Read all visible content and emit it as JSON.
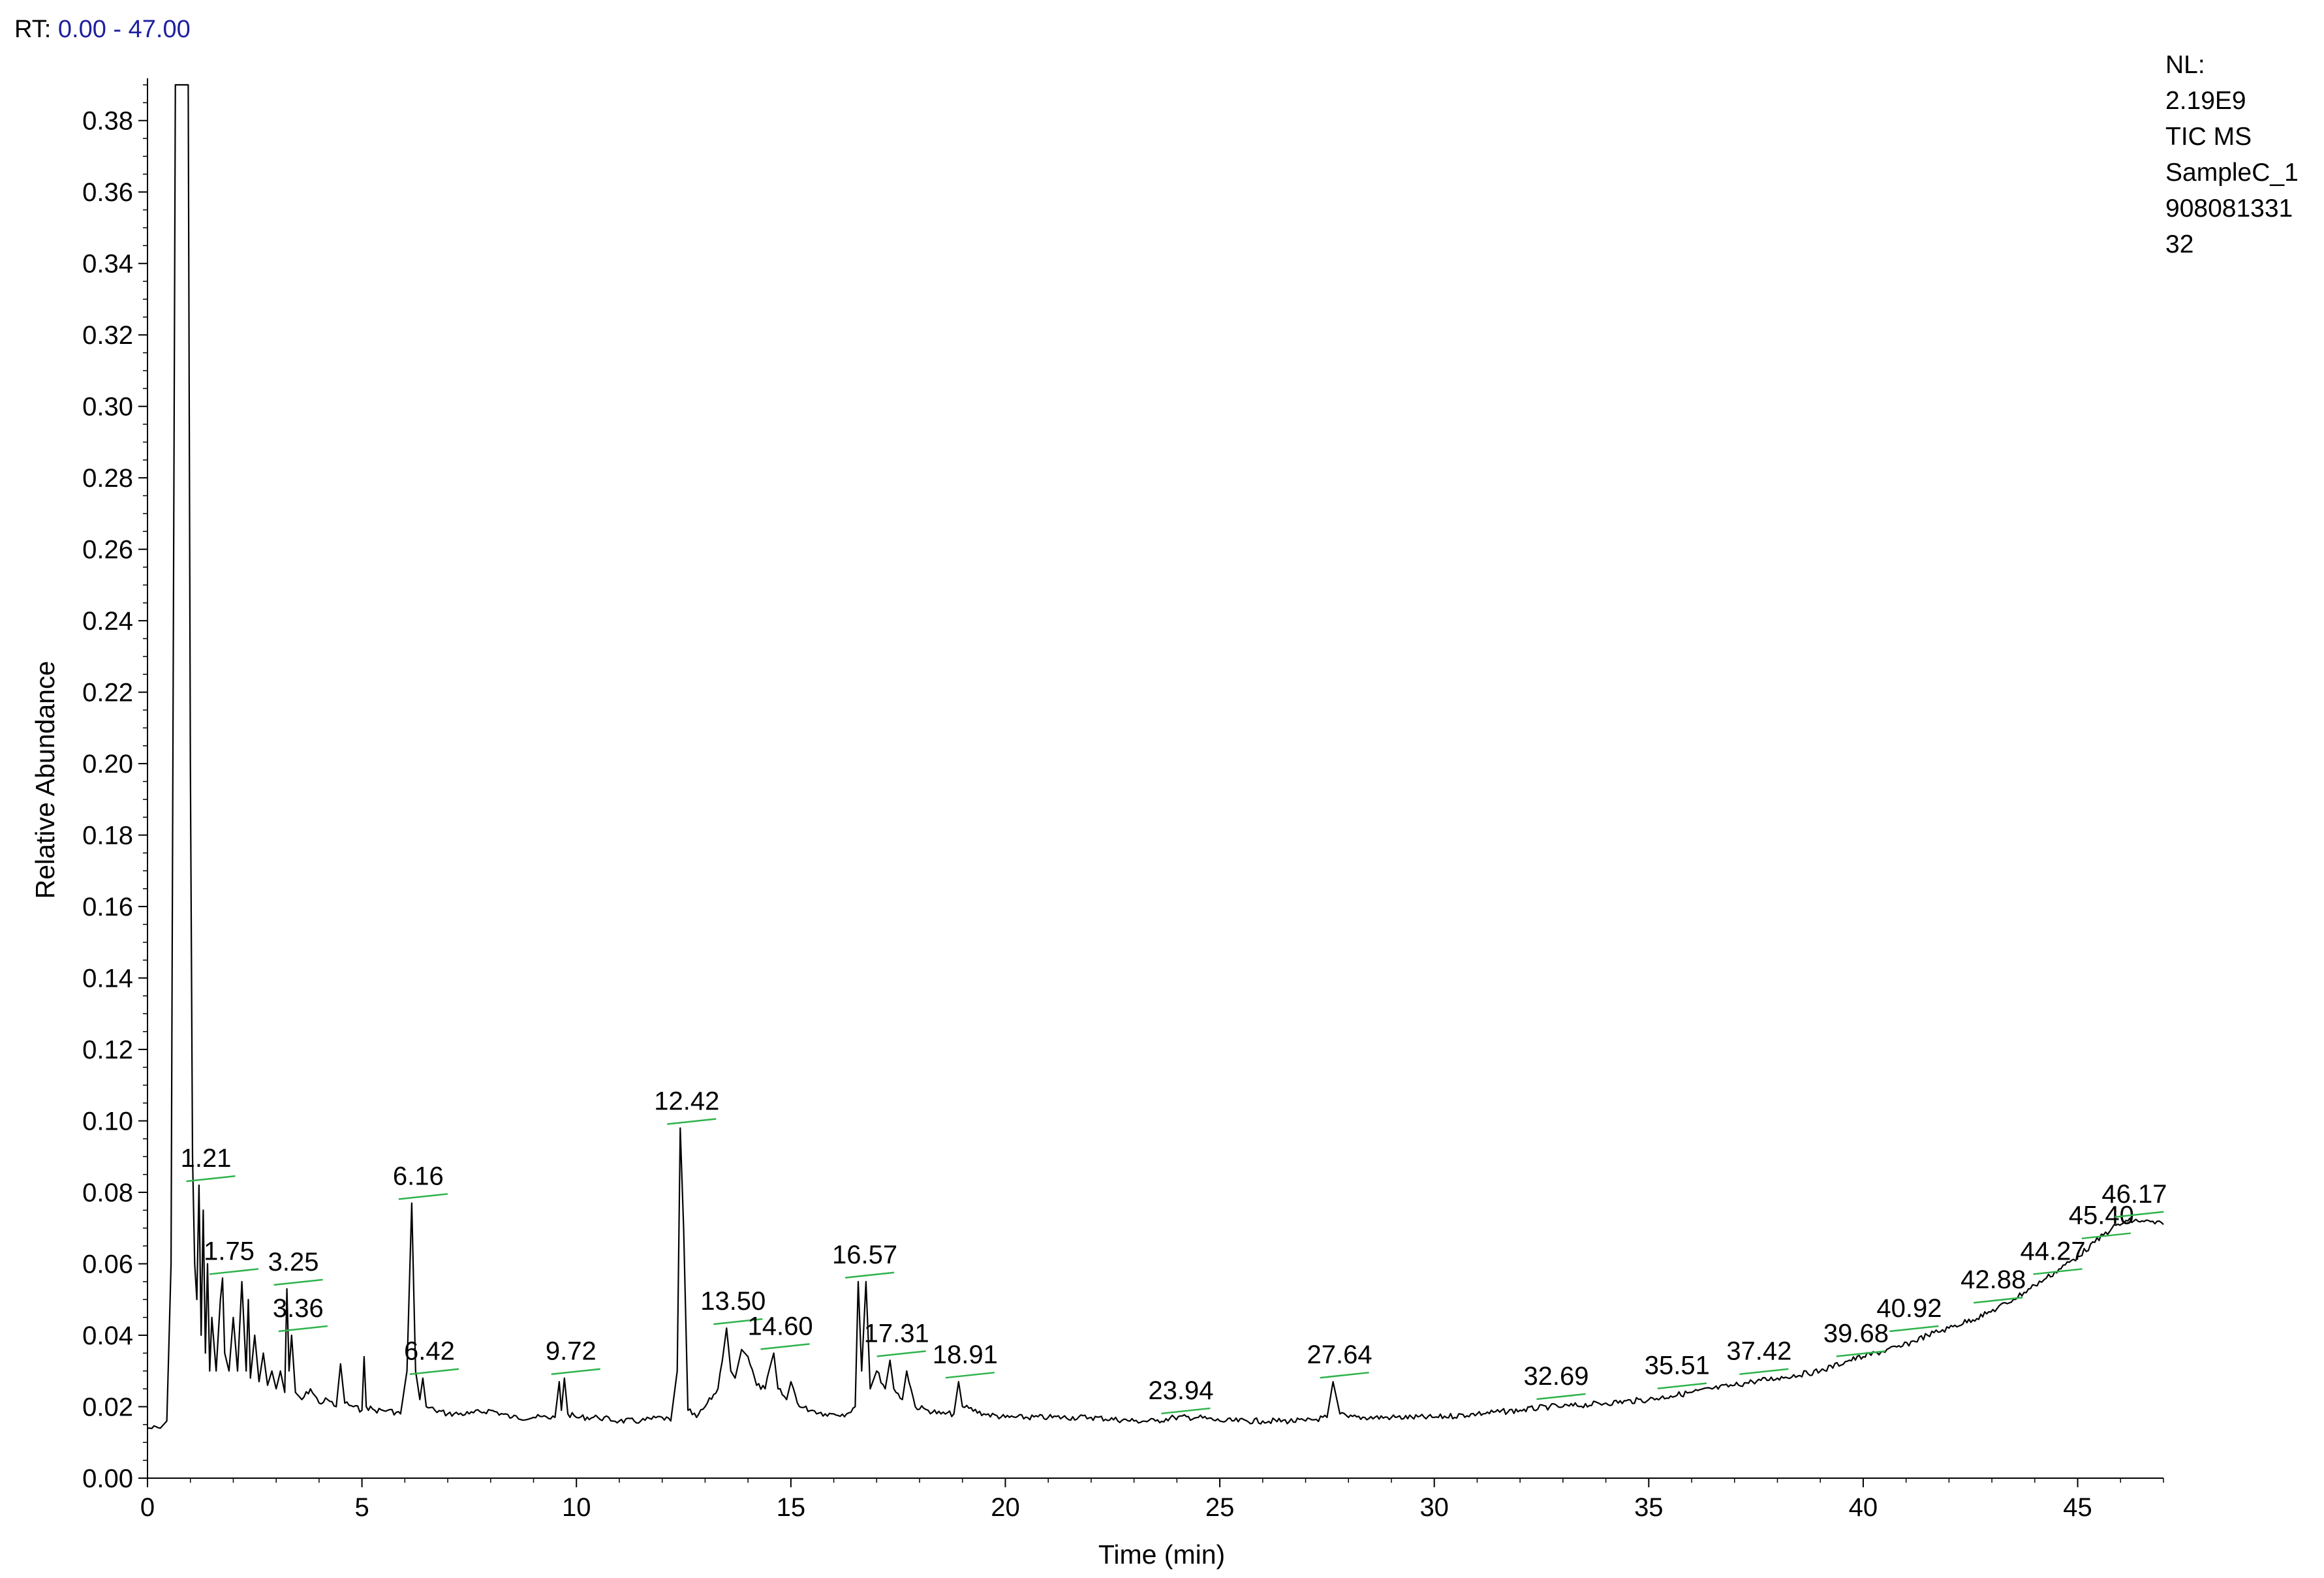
{
  "header": {
    "rt_prefix": "RT:",
    "rt_range": "0.00 - 47.00"
  },
  "info_box": {
    "lines": [
      "NL:",
      "2.19E9",
      "TIC  MS",
      "SampleC_1",
      "908081331",
      "32"
    ]
  },
  "chart_data": {
    "type": "line",
    "title": "",
    "xlabel": "Time (min)",
    "ylabel": "Relative Abundance",
    "xlim": [
      0,
      47
    ],
    "ylim": [
      0,
      0.39
    ],
    "xticks": [
      0,
      5,
      10,
      15,
      20,
      25,
      30,
      35,
      40,
      45
    ],
    "yticks": [
      "0.00",
      "0.02",
      "0.04",
      "0.06",
      "0.08",
      "0.10",
      "0.12",
      "0.14",
      "0.16",
      "0.18",
      "0.20",
      "0.22",
      "0.24",
      "0.26",
      "0.28",
      "0.30",
      "0.32",
      "0.34",
      "0.36",
      "0.38"
    ],
    "grid": false,
    "line_color": "#000000",
    "marker_color": "#2db34a",
    "series": [
      {
        "x": [
          0.0,
          0.3,
          0.45,
          0.55,
          0.65,
          0.75,
          0.8,
          0.85,
          0.9,
          0.95,
          1.0,
          1.05,
          1.1,
          1.15,
          1.2,
          1.25,
          1.3,
          1.35,
          1.4,
          1.45,
          1.5,
          1.6,
          1.7,
          1.75,
          1.8,
          1.9,
          2.0,
          2.1,
          2.2,
          2.3,
          2.35,
          2.4,
          2.5,
          2.6,
          2.7,
          2.8,
          2.9,
          3.0,
          3.1,
          3.2,
          3.25,
          3.3,
          3.36,
          3.45,
          3.6,
          3.8,
          4.0,
          4.2,
          4.4,
          4.5,
          4.6,
          4.8,
          5.0,
          5.05,
          5.1,
          5.3,
          5.6,
          5.9,
          6.05,
          6.16,
          6.25,
          6.35,
          6.42,
          6.5,
          6.7,
          7.0,
          7.5,
          8.0,
          8.5,
          9.0,
          9.5,
          9.6,
          9.65,
          9.72,
          9.8,
          10.0,
          10.5,
          11.0,
          11.5,
          12.0,
          12.2,
          12.35,
          12.42,
          12.5,
          12.6,
          12.8,
          13.0,
          13.3,
          13.5,
          13.6,
          13.7,
          13.85,
          14.0,
          14.2,
          14.4,
          14.6,
          14.7,
          14.9,
          15.0,
          15.2,
          15.5,
          15.8,
          16.0,
          16.3,
          16.5,
          16.57,
          16.65,
          16.75,
          16.85,
          17.0,
          17.2,
          17.31,
          17.4,
          17.6,
          17.7,
          17.9,
          18.2,
          18.5,
          18.8,
          18.91,
          19.0,
          19.5,
          20.0,
          21.0,
          22.0,
          23.0,
          23.5,
          23.94,
          24.5,
          25.0,
          26.0,
          27.0,
          27.5,
          27.64,
          27.8,
          28.0,
          29.0,
          30.0,
          31.0,
          32.0,
          32.69,
          33.0,
          34.0,
          35.0,
          35.51,
          36.0,
          37.0,
          37.42,
          38.0,
          39.0,
          39.68,
          40.0,
          40.92,
          41.5,
          42.0,
          42.88,
          43.5,
          44.0,
          44.27,
          45.0,
          45.4,
          45.8,
          46.17,
          46.5,
          47.0
        ],
        "y": [
          0.014,
          0.014,
          0.016,
          0.06,
          0.39,
          0.39,
          0.39,
          0.39,
          0.39,
          0.39,
          0.2,
          0.09,
          0.06,
          0.05,
          0.082,
          0.04,
          0.075,
          0.035,
          0.06,
          0.03,
          0.045,
          0.03,
          0.05,
          0.056,
          0.035,
          0.03,
          0.045,
          0.03,
          0.055,
          0.03,
          0.05,
          0.028,
          0.04,
          0.027,
          0.035,
          0.026,
          0.03,
          0.025,
          0.03,
          0.024,
          0.053,
          0.03,
          0.04,
          0.024,
          0.022,
          0.025,
          0.021,
          0.022,
          0.02,
          0.032,
          0.021,
          0.02,
          0.019,
          0.034,
          0.02,
          0.019,
          0.019,
          0.018,
          0.03,
          0.077,
          0.03,
          0.022,
          0.028,
          0.02,
          0.019,
          0.018,
          0.018,
          0.019,
          0.017,
          0.017,
          0.017,
          0.027,
          0.019,
          0.028,
          0.018,
          0.017,
          0.017,
          0.016,
          0.016,
          0.017,
          0.016,
          0.03,
          0.098,
          0.07,
          0.019,
          0.017,
          0.02,
          0.025,
          0.042,
          0.03,
          0.028,
          0.036,
          0.034,
          0.026,
          0.025,
          0.035,
          0.025,
          0.022,
          0.027,
          0.02,
          0.019,
          0.018,
          0.018,
          0.018,
          0.02,
          0.055,
          0.03,
          0.055,
          0.025,
          0.03,
          0.025,
          0.033,
          0.025,
          0.022,
          0.03,
          0.02,
          0.019,
          0.018,
          0.018,
          0.027,
          0.02,
          0.018,
          0.017,
          0.017,
          0.017,
          0.016,
          0.016,
          0.017,
          0.017,
          0.016,
          0.016,
          0.016,
          0.017,
          0.027,
          0.018,
          0.017,
          0.017,
          0.017,
          0.018,
          0.019,
          0.02,
          0.02,
          0.021,
          0.022,
          0.023,
          0.024,
          0.026,
          0.027,
          0.028,
          0.03,
          0.033,
          0.034,
          0.037,
          0.04,
          0.042,
          0.046,
          0.05,
          0.054,
          0.056,
          0.062,
          0.066,
          0.07,
          0.072,
          0.072,
          0.071
        ]
      }
    ],
    "peak_labels": [
      {
        "text": "1.21",
        "x": 1.21,
        "y": 0.082
      },
      {
        "text": "1.75",
        "x": 1.75,
        "y": 0.056
      },
      {
        "text": "3.25",
        "x": 3.25,
        "y": 0.053
      },
      {
        "text": "3.36",
        "x": 3.36,
        "y": 0.04
      },
      {
        "text": "6.16",
        "x": 6.16,
        "y": 0.077
      },
      {
        "text": "6.42",
        "x": 6.42,
        "y": 0.028
      },
      {
        "text": "9.72",
        "x": 9.72,
        "y": 0.028
      },
      {
        "text": "12.42",
        "x": 12.42,
        "y": 0.098
      },
      {
        "text": "13.50",
        "x": 13.5,
        "y": 0.042
      },
      {
        "text": "14.60",
        "x": 14.6,
        "y": 0.035
      },
      {
        "text": "16.57",
        "x": 16.57,
        "y": 0.055
      },
      {
        "text": "17.31",
        "x": 17.31,
        "y": 0.033
      },
      {
        "text": "18.91",
        "x": 18.91,
        "y": 0.027
      },
      {
        "text": "23.94",
        "x": 23.94,
        "y": 0.017
      },
      {
        "text": "27.64",
        "x": 27.64,
        "y": 0.027
      },
      {
        "text": "32.69",
        "x": 32.69,
        "y": 0.021
      },
      {
        "text": "35.51",
        "x": 35.51,
        "y": 0.024
      },
      {
        "text": "37.42",
        "x": 37.42,
        "y": 0.028
      },
      {
        "text": "39.68",
        "x": 39.68,
        "y": 0.033
      },
      {
        "text": "40.92",
        "x": 40.92,
        "y": 0.04
      },
      {
        "text": "42.88",
        "x": 42.88,
        "y": 0.048
      },
      {
        "text": "44.27",
        "x": 44.27,
        "y": 0.056
      },
      {
        "text": "45.40",
        "x": 45.4,
        "y": 0.066
      },
      {
        "text": "46.17",
        "x": 46.17,
        "y": 0.072
      }
    ]
  }
}
